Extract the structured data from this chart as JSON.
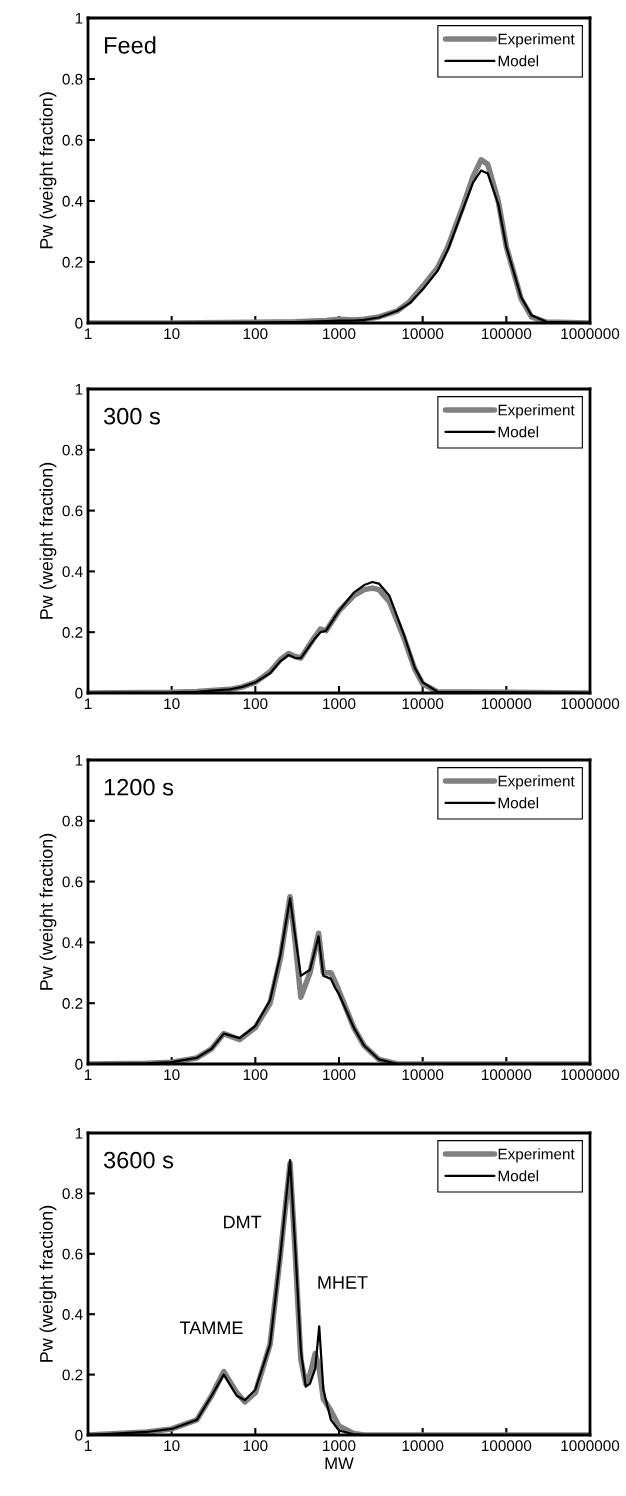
{
  "chart_data": [
    {
      "type": "line",
      "title": "Feed",
      "ylabel": "Pw (weight fraction)",
      "log": "x",
      "legend": "top right",
      "grid": false,
      "marker": "none",
      "line_style": "solid",
      "tick_labels": true,
      "xlim": [
        1,
        1000000
      ],
      "xticks": [
        1,
        10,
        100,
        1000,
        10000,
        100000,
        1000000
      ],
      "ylim": [
        0,
        1
      ],
      "yticks": [
        0,
        0.2,
        0.4,
        0.6,
        0.8,
        1
      ],
      "x": [
        1,
        10,
        100,
        300,
        700,
        1000,
        1500,
        2000,
        3000,
        5000,
        7000,
        10000,
        15000,
        20000,
        30000,
        40000,
        50000,
        60000,
        80000,
        100000,
        150000,
        200000,
        300000,
        1000000
      ],
      "series": [
        {
          "name": "Experiment",
          "color": "#808080",
          "values": [
            0,
            0,
            0.002,
            0.004,
            0.008,
            0.012,
            0.01,
            0.012,
            0.02,
            0.04,
            0.07,
            0.12,
            0.18,
            0.25,
            0.38,
            0.48,
            0.535,
            0.52,
            0.4,
            0.25,
            0.08,
            0.02,
            0.003,
            0
          ]
        },
        {
          "name": "Model",
          "color": "#000000",
          "values": [
            0,
            0,
            0.001,
            0.003,
            0.006,
            0.008,
            0.008,
            0.01,
            0.018,
            0.04,
            0.065,
            0.11,
            0.17,
            0.24,
            0.37,
            0.46,
            0.5,
            0.49,
            0.39,
            0.25,
            0.085,
            0.025,
            0.004,
            0
          ]
        }
      ]
    },
    {
      "type": "line",
      "title": "300 s",
      "ylabel": "Pw (weight fraction)",
      "log": "x",
      "legend": "top right",
      "grid": false,
      "marker": "none",
      "line_style": "solid",
      "xlim": [
        1,
        1000000
      ],
      "xticks": [
        1,
        10,
        100,
        1000,
        10000,
        100000,
        1000000
      ],
      "ylim": [
        0,
        1
      ],
      "yticks": [
        0,
        0.2,
        0.4,
        0.6,
        0.8,
        1
      ],
      "x": [
        1,
        10,
        20,
        30,
        50,
        70,
        100,
        150,
        200,
        250,
        300,
        350,
        500,
        600,
        700,
        1000,
        1500,
        2000,
        2500,
        3000,
        4000,
        6000,
        8000,
        10000,
        15000,
        1000000
      ],
      "series": [
        {
          "name": "Experiment",
          "color": "#808080",
          "values": [
            0,
            0.002,
            0.005,
            0.008,
            0.012,
            0.02,
            0.035,
            0.07,
            0.11,
            0.13,
            0.12,
            0.115,
            0.18,
            0.21,
            0.205,
            0.27,
            0.32,
            0.34,
            0.345,
            0.34,
            0.3,
            0.18,
            0.08,
            0.03,
            0.004,
            0
          ]
        },
        {
          "name": "Model",
          "color": "#000000",
          "values": [
            0,
            0.001,
            0.004,
            0.008,
            0.012,
            0.02,
            0.035,
            0.065,
            0.105,
            0.125,
            0.115,
            0.115,
            0.175,
            0.2,
            0.205,
            0.27,
            0.33,
            0.355,
            0.365,
            0.36,
            0.32,
            0.19,
            0.085,
            0.035,
            0.004,
            0
          ]
        }
      ]
    },
    {
      "type": "line",
      "title": "1200 s",
      "ylabel": "Pw (weight fraction)",
      "log": "x",
      "legend": "top right",
      "grid": false,
      "marker": "none",
      "line_style": "solid",
      "xlim": [
        1,
        1000000
      ],
      "xticks": [
        1,
        10,
        100,
        1000,
        10000,
        100000,
        1000000
      ],
      "ylim": [
        0,
        1
      ],
      "yticks": [
        0,
        0.2,
        0.4,
        0.6,
        0.8,
        1
      ],
      "x": [
        1,
        5,
        10,
        20,
        30,
        42,
        65,
        100,
        150,
        200,
        260,
        300,
        350,
        450,
        570,
        650,
        800,
        900,
        1000,
        1500,
        2000,
        3000,
        5000,
        1000000
      ],
      "series": [
        {
          "name": "Experiment",
          "color": "#808080",
          "values": [
            0,
            0.002,
            0.006,
            0.02,
            0.05,
            0.1,
            0.08,
            0.12,
            0.2,
            0.35,
            0.55,
            0.4,
            0.22,
            0.3,
            0.43,
            0.3,
            0.3,
            0.27,
            0.24,
            0.12,
            0.06,
            0.015,
            0,
            0
          ]
        },
        {
          "name": "Model",
          "color": "#000000",
          "values": [
            0,
            0.002,
            0.006,
            0.02,
            0.05,
            0.1,
            0.085,
            0.125,
            0.21,
            0.36,
            0.545,
            0.42,
            0.29,
            0.31,
            0.42,
            0.29,
            0.28,
            0.25,
            0.23,
            0.12,
            0.06,
            0.015,
            0,
            0
          ]
        }
      ]
    },
    {
      "type": "line",
      "title": "3600 s",
      "xlabel": "MW",
      "ylabel": "Pw (weight fraction)",
      "log": "x",
      "legend": "top right",
      "grid": false,
      "marker": "none",
      "line_style": "solid",
      "xlim": [
        1,
        1000000
      ],
      "xticks": [
        1,
        10,
        100,
        1000,
        10000,
        100000,
        1000000
      ],
      "ylim": [
        0,
        1
      ],
      "yticks": [
        0,
        0.2,
        0.4,
        0.6,
        0.8,
        1
      ],
      "annotations": [
        "TAMME",
        "DMT",
        "MHET"
      ],
      "x": [
        1,
        5,
        10,
        20,
        30,
        42,
        60,
        75,
        100,
        150,
        200,
        260,
        300,
        350,
        400,
        450,
        520,
        580,
        650,
        800,
        1000,
        1500,
        2000,
        1000000
      ],
      "series": [
        {
          "name": "Experiment",
          "color": "#808080",
          "values": [
            0,
            0.01,
            0.02,
            0.05,
            0.13,
            0.21,
            0.14,
            0.11,
            0.14,
            0.3,
            0.6,
            0.9,
            0.6,
            0.25,
            0.17,
            0.2,
            0.27,
            0.22,
            0.12,
            0.08,
            0.03,
            0.005,
            0,
            0
          ]
        },
        {
          "name": "Model",
          "color": "#000000",
          "values": [
            0,
            0.01,
            0.02,
            0.05,
            0.13,
            0.2,
            0.13,
            0.115,
            0.15,
            0.3,
            0.6,
            0.91,
            0.62,
            0.28,
            0.16,
            0.17,
            0.22,
            0.36,
            0.15,
            0.05,
            0.015,
            0.002,
            0,
            0
          ]
        }
      ]
    }
  ]
}
